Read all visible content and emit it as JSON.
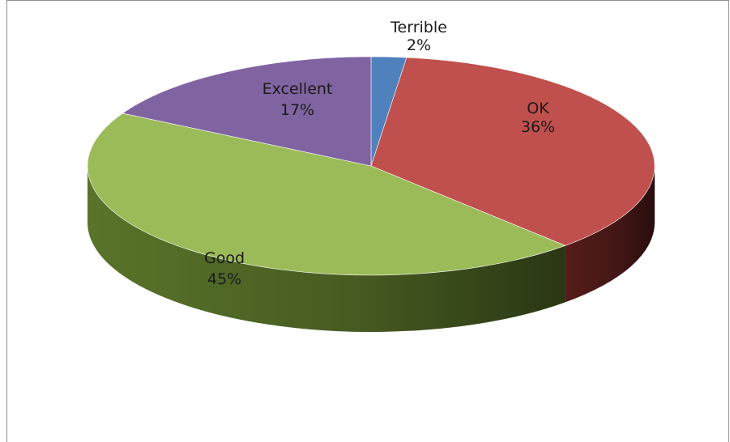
{
  "chart_data": {
    "type": "pie",
    "style": "3d",
    "title": "",
    "slices": [
      {
        "name": "Terrible",
        "percent_label": "2%",
        "value": 2,
        "color": "#4f81bd",
        "side_color": "#1f3a5f"
      },
      {
        "name": "OK",
        "percent_label": "36%",
        "value": 36,
        "color": "#c0504d",
        "side_color": "#5a1e1d"
      },
      {
        "name": "Good",
        "percent_label": "45%",
        "value": 45,
        "color": "#9bbb59",
        "side_color": "#5e7a2c"
      },
      {
        "name": "Excellent",
        "percent_label": "17%",
        "value": 17,
        "color": "#8064a2",
        "side_color": "#3f2c57"
      }
    ],
    "legend": "none",
    "data_labels": "category name and percentage"
  }
}
